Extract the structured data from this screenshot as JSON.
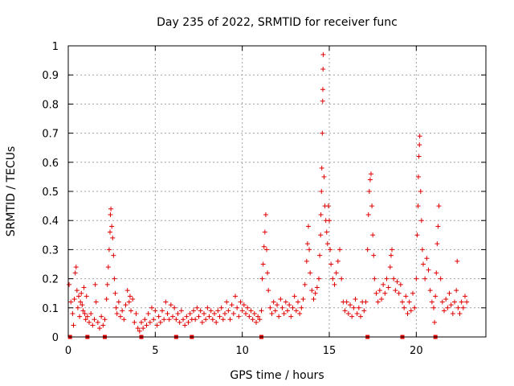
{
  "chart_data": {
    "type": "scatter",
    "title": "Day 235 of 2022, SRMTID for receiver func",
    "xlabel": "GPS time / hours",
    "ylabel": "SRMTID / TECUs",
    "xlim": [
      0,
      24
    ],
    "ylim": [
      0,
      1
    ],
    "x_ticks": [
      {
        "value": 0,
        "label": "0"
      },
      {
        "value": 5,
        "label": "5"
      },
      {
        "value": 10,
        "label": "10"
      },
      {
        "value": 15,
        "label": "15"
      },
      {
        "value": 20,
        "label": "20"
      }
    ],
    "y_ticks": [
      {
        "value": 0,
        "label": "0"
      },
      {
        "value": 0.1,
        "label": "0.1"
      },
      {
        "value": 0.2,
        "label": "0.2"
      },
      {
        "value": 0.3,
        "label": "0.3"
      },
      {
        "value": 0.4,
        "label": "0.4"
      },
      {
        "value": 0.5,
        "label": "0.5"
      },
      {
        "value": 0.6,
        "label": "0.6"
      },
      {
        "value": 0.7,
        "label": "0.7"
      },
      {
        "value": 0.8,
        "label": "0.8"
      },
      {
        "value": 0.9,
        "label": "0.9"
      },
      {
        "value": 1,
        "label": "1"
      }
    ],
    "grid": true,
    "marker": "plus",
    "color": "#e00000",
    "data_gaps_x": [
      0.1,
      1.1,
      2.1,
      4.2,
      6.2,
      7.1,
      11.1,
      17.2,
      19.2,
      21.1
    ],
    "series": [
      {
        "name": "SRMTID",
        "points": [
          [
            0.05,
            0.18
          ],
          [
            0.15,
            0.12
          ],
          [
            0.25,
            0.08
          ],
          [
            0.3,
            0.04
          ],
          [
            0.35,
            0.13
          ],
          [
            0.4,
            0.22
          ],
          [
            0.45,
            0.24
          ],
          [
            0.5,
            0.16
          ],
          [
            0.55,
            0.1
          ],
          [
            0.6,
            0.14
          ],
          [
            0.65,
            0.07
          ],
          [
            0.7,
            0.12
          ],
          [
            0.75,
            0.15
          ],
          [
            0.8,
            0.11
          ],
          [
            0.85,
            0.09
          ],
          [
            0.9,
            0.17
          ],
          [
            0.95,
            0.08
          ],
          [
            1.0,
            0.06
          ],
          [
            1.05,
            0.14
          ],
          [
            1.1,
            0.07
          ],
          [
            1.2,
            0.05
          ],
          [
            1.3,
            0.08
          ],
          [
            1.4,
            0.04
          ],
          [
            1.5,
            0.06
          ],
          [
            1.55,
            0.18
          ],
          [
            1.6,
            0.12
          ],
          [
            1.7,
            0.05
          ],
          [
            1.8,
            0.03
          ],
          [
            1.9,
            0.07
          ],
          [
            2.0,
            0.04
          ],
          [
            2.1,
            0.06
          ],
          [
            2.2,
            0.13
          ],
          [
            2.25,
            0.18
          ],
          [
            2.3,
            0.24
          ],
          [
            2.35,
            0.3
          ],
          [
            2.4,
            0.36
          ],
          [
            2.42,
            0.42
          ],
          [
            2.45,
            0.44
          ],
          [
            2.5,
            0.38
          ],
          [
            2.55,
            0.34
          ],
          [
            2.6,
            0.28
          ],
          [
            2.65,
            0.2
          ],
          [
            2.7,
            0.15
          ],
          [
            2.75,
            0.1
          ],
          [
            2.8,
            0.08
          ],
          [
            2.9,
            0.12
          ],
          [
            3.0,
            0.07
          ],
          [
            3.1,
            0.09
          ],
          [
            3.2,
            0.06
          ],
          [
            3.3,
            0.11
          ],
          [
            3.4,
            0.16
          ],
          [
            3.5,
            0.12
          ],
          [
            3.55,
            0.14
          ],
          [
            3.6,
            0.09
          ],
          [
            3.7,
            0.13
          ],
          [
            3.8,
            0.05
          ],
          [
            3.9,
            0.08
          ],
          [
            4.0,
            0.03
          ],
          [
            4.1,
            0.02
          ],
          [
            4.2,
            0.05
          ],
          [
            4.3,
            0.03
          ],
          [
            4.4,
            0.06
          ],
          [
            4.5,
            0.04
          ],
          [
            4.6,
            0.08
          ],
          [
            4.7,
            0.05
          ],
          [
            4.8,
            0.1
          ],
          [
            4.9,
            0.06
          ],
          [
            5.0,
            0.09
          ],
          [
            5.1,
            0.04
          ],
          [
            5.2,
            0.07
          ],
          [
            5.3,
            0.05
          ],
          [
            5.4,
            0.09
          ],
          [
            5.5,
            0.06
          ],
          [
            5.6,
            0.12
          ],
          [
            5.7,
            0.08
          ],
          [
            5.8,
            0.06
          ],
          [
            5.9,
            0.11
          ],
          [
            6.0,
            0.07
          ],
          [
            6.1,
            0.1
          ],
          [
            6.2,
            0.06
          ],
          [
            6.3,
            0.08
          ],
          [
            6.4,
            0.05
          ],
          [
            6.5,
            0.09
          ],
          [
            6.6,
            0.06
          ],
          [
            6.7,
            0.04
          ],
          [
            6.8,
            0.07
          ],
          [
            6.9,
            0.05
          ],
          [
            7.0,
            0.08
          ],
          [
            7.1,
            0.06
          ],
          [
            7.2,
            0.09
          ],
          [
            7.3,
            0.06
          ],
          [
            7.4,
            0.1
          ],
          [
            7.5,
            0.07
          ],
          [
            7.6,
            0.09
          ],
          [
            7.7,
            0.05
          ],
          [
            7.8,
            0.08
          ],
          [
            7.9,
            0.06
          ],
          [
            8.0,
            0.1
          ],
          [
            8.1,
            0.07
          ],
          [
            8.2,
            0.09
          ],
          [
            8.3,
            0.06
          ],
          [
            8.4,
            0.08
          ],
          [
            8.5,
            0.05
          ],
          [
            8.6,
            0.09
          ],
          [
            8.7,
            0.07
          ],
          [
            8.8,
            0.1
          ],
          [
            8.9,
            0.06
          ],
          [
            9.0,
            0.08
          ],
          [
            9.1,
            0.12
          ],
          [
            9.2,
            0.09
          ],
          [
            9.3,
            0.06
          ],
          [
            9.4,
            0.11
          ],
          [
            9.5,
            0.08
          ],
          [
            9.6,
            0.14
          ],
          [
            9.7,
            0.1
          ],
          [
            9.8,
            0.07
          ],
          [
            9.9,
            0.12
          ],
          [
            10.0,
            0.09
          ],
          [
            10.1,
            0.11
          ],
          [
            10.2,
            0.08
          ],
          [
            10.3,
            0.1
          ],
          [
            10.4,
            0.07
          ],
          [
            10.5,
            0.09
          ],
          [
            10.6,
            0.06
          ],
          [
            10.7,
            0.08
          ],
          [
            10.8,
            0.05
          ],
          [
            10.9,
            0.07
          ],
          [
            11.0,
            0.06
          ],
          [
            11.1,
            0.09
          ],
          [
            11.15,
            0.2
          ],
          [
            11.2,
            0.25
          ],
          [
            11.25,
            0.31
          ],
          [
            11.3,
            0.36
          ],
          [
            11.35,
            0.42
          ],
          [
            11.4,
            0.3
          ],
          [
            11.45,
            0.22
          ],
          [
            11.5,
            0.16
          ],
          [
            11.6,
            0.1
          ],
          [
            11.7,
            0.08
          ],
          [
            11.8,
            0.12
          ],
          [
            11.9,
            0.09
          ],
          [
            12.0,
            0.11
          ],
          [
            12.1,
            0.07
          ],
          [
            12.2,
            0.13
          ],
          [
            12.3,
            0.1
          ],
          [
            12.4,
            0.08
          ],
          [
            12.5,
            0.12
          ],
          [
            12.6,
            0.09
          ],
          [
            12.7,
            0.11
          ],
          [
            12.8,
            0.07
          ],
          [
            12.9,
            0.1
          ],
          [
            13.0,
            0.14
          ],
          [
            13.1,
            0.09
          ],
          [
            13.2,
            0.12
          ],
          [
            13.3,
            0.08
          ],
          [
            13.4,
            0.1
          ],
          [
            13.5,
            0.13
          ],
          [
            13.6,
            0.18
          ],
          [
            13.7,
            0.26
          ],
          [
            13.75,
            0.32
          ],
          [
            13.8,
            0.38
          ],
          [
            13.85,
            0.3
          ],
          [
            13.9,
            0.22
          ],
          [
            14.0,
            0.16
          ],
          [
            14.1,
            0.13
          ],
          [
            14.2,
            0.15
          ],
          [
            14.3,
            0.17
          ],
          [
            14.4,
            0.2
          ],
          [
            14.45,
            0.28
          ],
          [
            14.5,
            0.35
          ],
          [
            14.52,
            0.42
          ],
          [
            14.55,
            0.5
          ],
          [
            14.57,
            0.58
          ],
          [
            14.6,
            0.7
          ],
          [
            14.62,
            0.81
          ],
          [
            14.63,
            0.85
          ],
          [
            14.64,
            0.92
          ],
          [
            14.65,
            0.97
          ],
          [
            14.7,
            0.55
          ],
          [
            14.75,
            0.45
          ],
          [
            14.8,
            0.4
          ],
          [
            14.85,
            0.36
          ],
          [
            14.9,
            0.32
          ],
          [
            14.95,
            0.45
          ],
          [
            15.0,
            0.4
          ],
          [
            15.05,
            0.3
          ],
          [
            15.1,
            0.25
          ],
          [
            15.2,
            0.2
          ],
          [
            15.3,
            0.18
          ],
          [
            15.4,
            0.22
          ],
          [
            15.5,
            0.26
          ],
          [
            15.6,
            0.3
          ],
          [
            15.7,
            0.2
          ],
          [
            15.8,
            0.12
          ],
          [
            15.9,
            0.09
          ],
          [
            16.0,
            0.12
          ],
          [
            16.1,
            0.08
          ],
          [
            16.2,
            0.11
          ],
          [
            16.3,
            0.07
          ],
          [
            16.4,
            0.1
          ],
          [
            16.5,
            0.13
          ],
          [
            16.6,
            0.08
          ],
          [
            16.7,
            0.1
          ],
          [
            16.8,
            0.07
          ],
          [
            16.9,
            0.12
          ],
          [
            17.0,
            0.09
          ],
          [
            17.1,
            0.12
          ],
          [
            17.2,
            0.3
          ],
          [
            17.25,
            0.42
          ],
          [
            17.3,
            0.5
          ],
          [
            17.35,
            0.54
          ],
          [
            17.4,
            0.56
          ],
          [
            17.45,
            0.45
          ],
          [
            17.5,
            0.35
          ],
          [
            17.55,
            0.28
          ],
          [
            17.6,
            0.2
          ],
          [
            17.7,
            0.15
          ],
          [
            17.8,
            0.12
          ],
          [
            17.9,
            0.16
          ],
          [
            18.0,
            0.13
          ],
          [
            18.1,
            0.18
          ],
          [
            18.2,
            0.15
          ],
          [
            18.3,
            0.2
          ],
          [
            18.4,
            0.17
          ],
          [
            18.5,
            0.24
          ],
          [
            18.55,
            0.28
          ],
          [
            18.6,
            0.3
          ],
          [
            18.7,
            0.2
          ],
          [
            18.8,
            0.16
          ],
          [
            18.9,
            0.19
          ],
          [
            19.0,
            0.15
          ],
          [
            19.1,
            0.18
          ],
          [
            19.2,
            0.12
          ],
          [
            19.3,
            0.1
          ],
          [
            19.4,
            0.14
          ],
          [
            19.5,
            0.08
          ],
          [
            19.6,
            0.12
          ],
          [
            19.7,
            0.09
          ],
          [
            19.8,
            0.15
          ],
          [
            19.9,
            0.1
          ],
          [
            20.0,
            0.2
          ],
          [
            20.05,
            0.35
          ],
          [
            20.1,
            0.45
          ],
          [
            20.12,
            0.55
          ],
          [
            20.15,
            0.62
          ],
          [
            20.18,
            0.66
          ],
          [
            20.2,
            0.69
          ],
          [
            20.25,
            0.5
          ],
          [
            20.3,
            0.4
          ],
          [
            20.35,
            0.3
          ],
          [
            20.4,
            0.25
          ],
          [
            20.5,
            0.2
          ],
          [
            20.6,
            0.27
          ],
          [
            20.7,
            0.23
          ],
          [
            20.8,
            0.16
          ],
          [
            20.9,
            0.12
          ],
          [
            21.0,
            0.1
          ],
          [
            21.05,
            0.05
          ],
          [
            21.1,
            0.14
          ],
          [
            21.15,
            0.22
          ],
          [
            21.2,
            0.32
          ],
          [
            21.25,
            0.38
          ],
          [
            21.3,
            0.45
          ],
          [
            21.4,
            0.2
          ],
          [
            21.5,
            0.12
          ],
          [
            21.6,
            0.09
          ],
          [
            21.7,
            0.13
          ],
          [
            21.8,
            0.1
          ],
          [
            21.9,
            0.15
          ],
          [
            22.0,
            0.11
          ],
          [
            22.1,
            0.08
          ],
          [
            22.2,
            0.12
          ],
          [
            22.3,
            0.16
          ],
          [
            22.35,
            0.26
          ],
          [
            22.4,
            0.1
          ],
          [
            22.5,
            0.08
          ],
          [
            22.6,
            0.12
          ],
          [
            22.7,
            0.1
          ],
          [
            22.8,
            0.14
          ],
          [
            22.9,
            0.12
          ]
        ]
      }
    ]
  }
}
